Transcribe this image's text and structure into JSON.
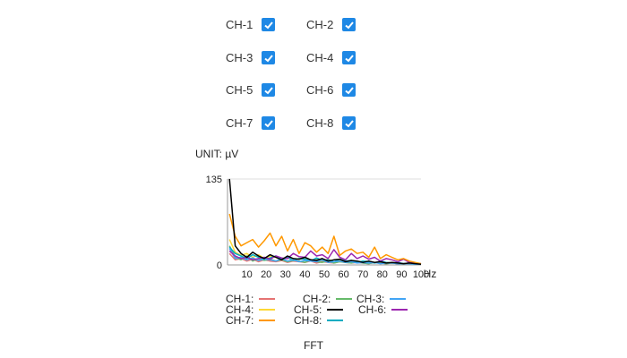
{
  "channels": [
    {
      "label": "CH-1",
      "checked": true
    },
    {
      "label": "CH-2",
      "checked": true
    },
    {
      "label": "CH-3",
      "checked": true
    },
    {
      "label": "CH-4",
      "checked": true
    },
    {
      "label": "CH-5",
      "checked": true
    },
    {
      "label": "CH-6",
      "checked": true
    },
    {
      "label": "CH-7",
      "checked": true
    },
    {
      "label": "CH-8",
      "checked": true
    }
  ],
  "unit_label": "UNIT: µV",
  "chart_title": "FFT",
  "colors": {
    "checkbox": "#1e88e5",
    "CH-1": "#e57373",
    "CH-2": "#66bb6a",
    "CH-3": "#42a5f5",
    "CH-4": "#fdd835",
    "CH-5": "#000000",
    "CH-6": "#9c27b0",
    "CH-7": "#ff9800",
    "CH-8": "#00acc1"
  },
  "legend": [
    {
      "label": "CH-1:",
      "color": "#e57373"
    },
    {
      "label": "CH-2:",
      "color": "#66bb6a"
    },
    {
      "label": "CH-3:",
      "color": "#42a5f5"
    },
    {
      "label": "CH-4:",
      "color": "#fdd835"
    },
    {
      "label": "CH-5:",
      "color": "#000000"
    },
    {
      "label": "CH-6:",
      "color": "#9c27b0"
    },
    {
      "label": "CH-7:",
      "color": "#ff9800"
    },
    {
      "label": "CH-8:",
      "color": "#00acc1"
    }
  ],
  "chart_data": {
    "type": "line",
    "title": "FFT",
    "xlabel": "Hz",
    "ylabel": "",
    "xlim": [
      0,
      100
    ],
    "ylim": [
      0,
      135
    ],
    "x_ticks": [
      "10",
      "20",
      "30",
      "40",
      "50",
      "60",
      "70",
      "80",
      "90",
      "100"
    ],
    "y_ticks": [
      "0",
      "135"
    ],
    "x": [
      1,
      4,
      7,
      10,
      13,
      16,
      19,
      22,
      25,
      28,
      31,
      34,
      37,
      40,
      43,
      46,
      49,
      52,
      55,
      58,
      61,
      64,
      67,
      70,
      73,
      76,
      79,
      82,
      85,
      88,
      91,
      94,
      97,
      100
    ],
    "series": [
      {
        "name": "CH-1",
        "color": "#e57373",
        "values": [
          18,
          8,
          10,
          6,
          9,
          5,
          8,
          6,
          5,
          7,
          4,
          6,
          5,
          4,
          6,
          3,
          5,
          4,
          3,
          5,
          4,
          3,
          4,
          3,
          2,
          4,
          3,
          2,
          3,
          2,
          2,
          3,
          2,
          1
        ]
      },
      {
        "name": "CH-2",
        "color": "#66bb6a",
        "values": [
          30,
          12,
          8,
          14,
          6,
          10,
          7,
          9,
          6,
          8,
          5,
          7,
          6,
          4,
          8,
          5,
          4,
          6,
          3,
          5,
          4,
          3,
          5,
          3,
          2,
          4,
          3,
          2,
          3,
          2,
          2,
          2,
          1,
          1
        ]
      },
      {
        "name": "CH-3",
        "color": "#42a5f5",
        "values": [
          26,
          10,
          12,
          8,
          11,
          7,
          9,
          8,
          6,
          10,
          6,
          8,
          5,
          7,
          6,
          5,
          8,
          4,
          5,
          6,
          4,
          5,
          3,
          4,
          3,
          4,
          2,
          3,
          3,
          2,
          2,
          2,
          1,
          1
        ]
      },
      {
        "name": "CH-4",
        "color": "#fdd835",
        "values": [
          40,
          20,
          15,
          18,
          12,
          16,
          10,
          14,
          12,
          9,
          11,
          8,
          10,
          9,
          7,
          8,
          6,
          9,
          5,
          7,
          6,
          5,
          6,
          4,
          5,
          4,
          3,
          4,
          3,
          3,
          2,
          3,
          2,
          1
        ]
      },
      {
        "name": "CH-5",
        "color": "#000000",
        "values": [
          135,
          30,
          18,
          12,
          20,
          14,
          10,
          16,
          12,
          8,
          14,
          10,
          9,
          12,
          8,
          7,
          10,
          6,
          8,
          9,
          5,
          7,
          6,
          4,
          6,
          4,
          5,
          3,
          4,
          3,
          2,
          3,
          2,
          1
        ]
      },
      {
        "name": "CH-6",
        "color": "#9c27b0",
        "values": [
          22,
          14,
          10,
          12,
          8,
          10,
          12,
          9,
          14,
          11,
          10,
          18,
          13,
          12,
          22,
          14,
          16,
          10,
          24,
          12,
          8,
          18,
          10,
          14,
          9,
          12,
          6,
          10,
          8,
          5,
          9,
          4,
          3,
          2
        ]
      },
      {
        "name": "CH-7",
        "color": "#ff9800",
        "values": [
          80,
          45,
          30,
          35,
          40,
          28,
          38,
          50,
          30,
          45,
          22,
          40,
          18,
          35,
          30,
          20,
          28,
          18,
          45,
          15,
          22,
          25,
          18,
          20,
          12,
          28,
          10,
          16,
          12,
          8,
          10,
          6,
          4,
          2
        ]
      },
      {
        "name": "CH-8",
        "color": "#00acc1",
        "values": [
          28,
          18,
          14,
          10,
          16,
          12,
          9,
          11,
          14,
          8,
          12,
          7,
          10,
          9,
          6,
          11,
          7,
          8,
          5,
          9,
          6,
          7,
          4,
          6,
          5,
          3,
          6,
          4,
          3,
          4,
          2,
          3,
          2,
          1
        ]
      }
    ]
  }
}
